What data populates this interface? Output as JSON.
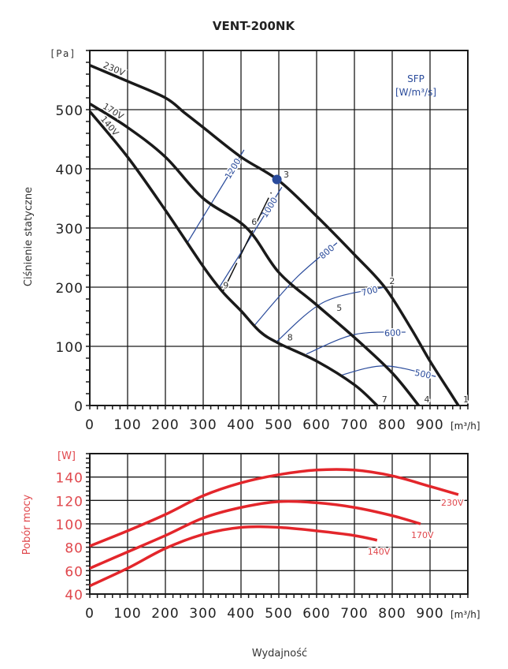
{
  "chart_data": [
    {
      "type": "line",
      "title": "VENT-200NK",
      "xlabel": "[m3/h]",
      "ylabel": "Ciśnienie statyczne",
      "yunit": "[Pa]",
      "xlim": [
        0,
        1000
      ],
      "ylim": [
        0,
        600
      ],
      "xticks": [
        "0",
        "100",
        "200",
        "300",
        "400",
        "500",
        "600",
        "700",
        "800",
        "900"
      ],
      "yticks": [
        "0",
        "100",
        "200",
        "300",
        "400",
        "500"
      ],
      "series": [
        {
          "name": "230V",
          "x": [
            0,
            100,
            200,
            250,
            300,
            400,
            500,
            600,
            700,
            780,
            850,
            900,
            950,
            975
          ],
          "y": [
            575,
            548,
            520,
            495,
            470,
            420,
            380,
            320,
            255,
            200,
            130,
            75,
            25,
            0
          ]
        },
        {
          "name": "170V",
          "x": [
            0,
            100,
            200,
            300,
            415,
            500,
            600,
            700,
            800,
            870
          ],
          "y": [
            510,
            470,
            420,
            350,
            300,
            225,
            170,
            115,
            55,
            0
          ]
        },
        {
          "name": "140V",
          "x": [
            0,
            100,
            200,
            300,
            350,
            400,
            450,
            500,
            600,
            700,
            760
          ],
          "y": [
            497,
            420,
            330,
            235,
            193,
            160,
            125,
            105,
            75,
            35,
            0
          ]
        }
      ],
      "sfp_label": "SFP",
      "sfp_unit": "[W/m3/s]",
      "sfp_lines": [
        {
          "name": "1200",
          "x": [
            258,
            408
          ],
          "y": [
            275,
            432
          ]
        },
        {
          "name": "1000",
          "x": [
            342,
            508
          ],
          "y": [
            199,
            369
          ]
        },
        {
          "name": "800",
          "x": [
            435,
            545,
            654
          ],
          "y": [
            135,
            215,
            275
          ]
        },
        {
          "name": "700",
          "x": [
            496,
            620,
            780
          ],
          "y": [
            109,
            175,
            200
          ]
        },
        {
          "name": "600",
          "x": [
            573,
            700,
            835
          ],
          "y": [
            87,
            120,
            124
          ]
        },
        {
          "name": "500",
          "x": [
            663,
            780,
            915
          ],
          "y": [
            51,
            67,
            49
          ]
        }
      ],
      "points": [
        {
          "label": "1",
          "x": 975,
          "y": 0
        },
        {
          "label": "2",
          "x": 780,
          "y": 200
        },
        {
          "label": "3",
          "x": 500,
          "y": 380
        },
        {
          "label": "4",
          "x": 872,
          "y": 0
        },
        {
          "label": "5",
          "x": 640,
          "y": 155
        },
        {
          "label": "6",
          "x": 415,
          "y": 300
        },
        {
          "label": "7",
          "x": 760,
          "y": 0
        },
        {
          "label": "8",
          "x": 510,
          "y": 105
        },
        {
          "label": "9",
          "x": 340,
          "y": 193
        }
      ],
      "operating_point": {
        "x": 495,
        "y": 382
      }
    },
    {
      "type": "line",
      "xlabel": "Wydajność",
      "xunit": "[m3/h]",
      "ylabel": "Pobór mocy",
      "yunit": "[W]",
      "xlim": [
        0,
        1000
      ],
      "ylim": [
        40,
        160
      ],
      "xticks": [
        "0",
        "100",
        "200",
        "300",
        "400",
        "500",
        "600",
        "700",
        "800",
        "900"
      ],
      "yticks": [
        "40",
        "60",
        "80",
        "100",
        "120",
        "140"
      ],
      "series": [
        {
          "name": "230V",
          "x": [
            0,
            100,
            200,
            300,
            400,
            500,
            600,
            700,
            800,
            900,
            975
          ],
          "y": [
            81,
            94,
            108,
            124,
            135,
            142,
            146,
            146,
            141,
            132,
            125
          ]
        },
        {
          "name": "170V",
          "x": [
            0,
            100,
            200,
            300,
            400,
            500,
            600,
            700,
            800,
            875
          ],
          "y": [
            62,
            76,
            90,
            105,
            114,
            119,
            118,
            114,
            107,
            100
          ]
        },
        {
          "name": "140V",
          "x": [
            0,
            100,
            200,
            300,
            400,
            500,
            600,
            700,
            760
          ],
          "y": [
            47,
            62,
            79,
            91,
            97,
            97,
            94,
            90,
            86
          ]
        }
      ]
    }
  ],
  "colors": {
    "grid": "#1a1a1a",
    "curve": "#1a1a1a",
    "sfp": "#2a4b9b",
    "power": "#e3262b",
    "powerText": "#e0474c"
  }
}
